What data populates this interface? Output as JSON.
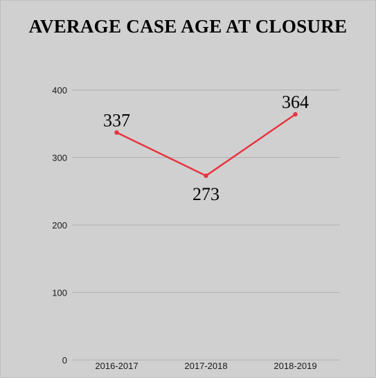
{
  "chart_data": {
    "type": "line",
    "title": "AVERAGE CASE AGE AT CLOSURE",
    "xlabel": "",
    "ylabel": "",
    "categories": [
      "2016-2017",
      "2017-2018",
      "2018-2019"
    ],
    "series": [
      {
        "values": [
          337,
          273,
          364
        ],
        "color": "#e8333f"
      }
    ],
    "data_labels": [
      "337",
      "273",
      "364"
    ],
    "ylim": [
      0,
      400
    ],
    "yticks": [
      0,
      100,
      200,
      300,
      400
    ],
    "grid": true,
    "legend": "none",
    "background": "#d0d0d0",
    "gridline_color": "#b0b0b0"
  }
}
